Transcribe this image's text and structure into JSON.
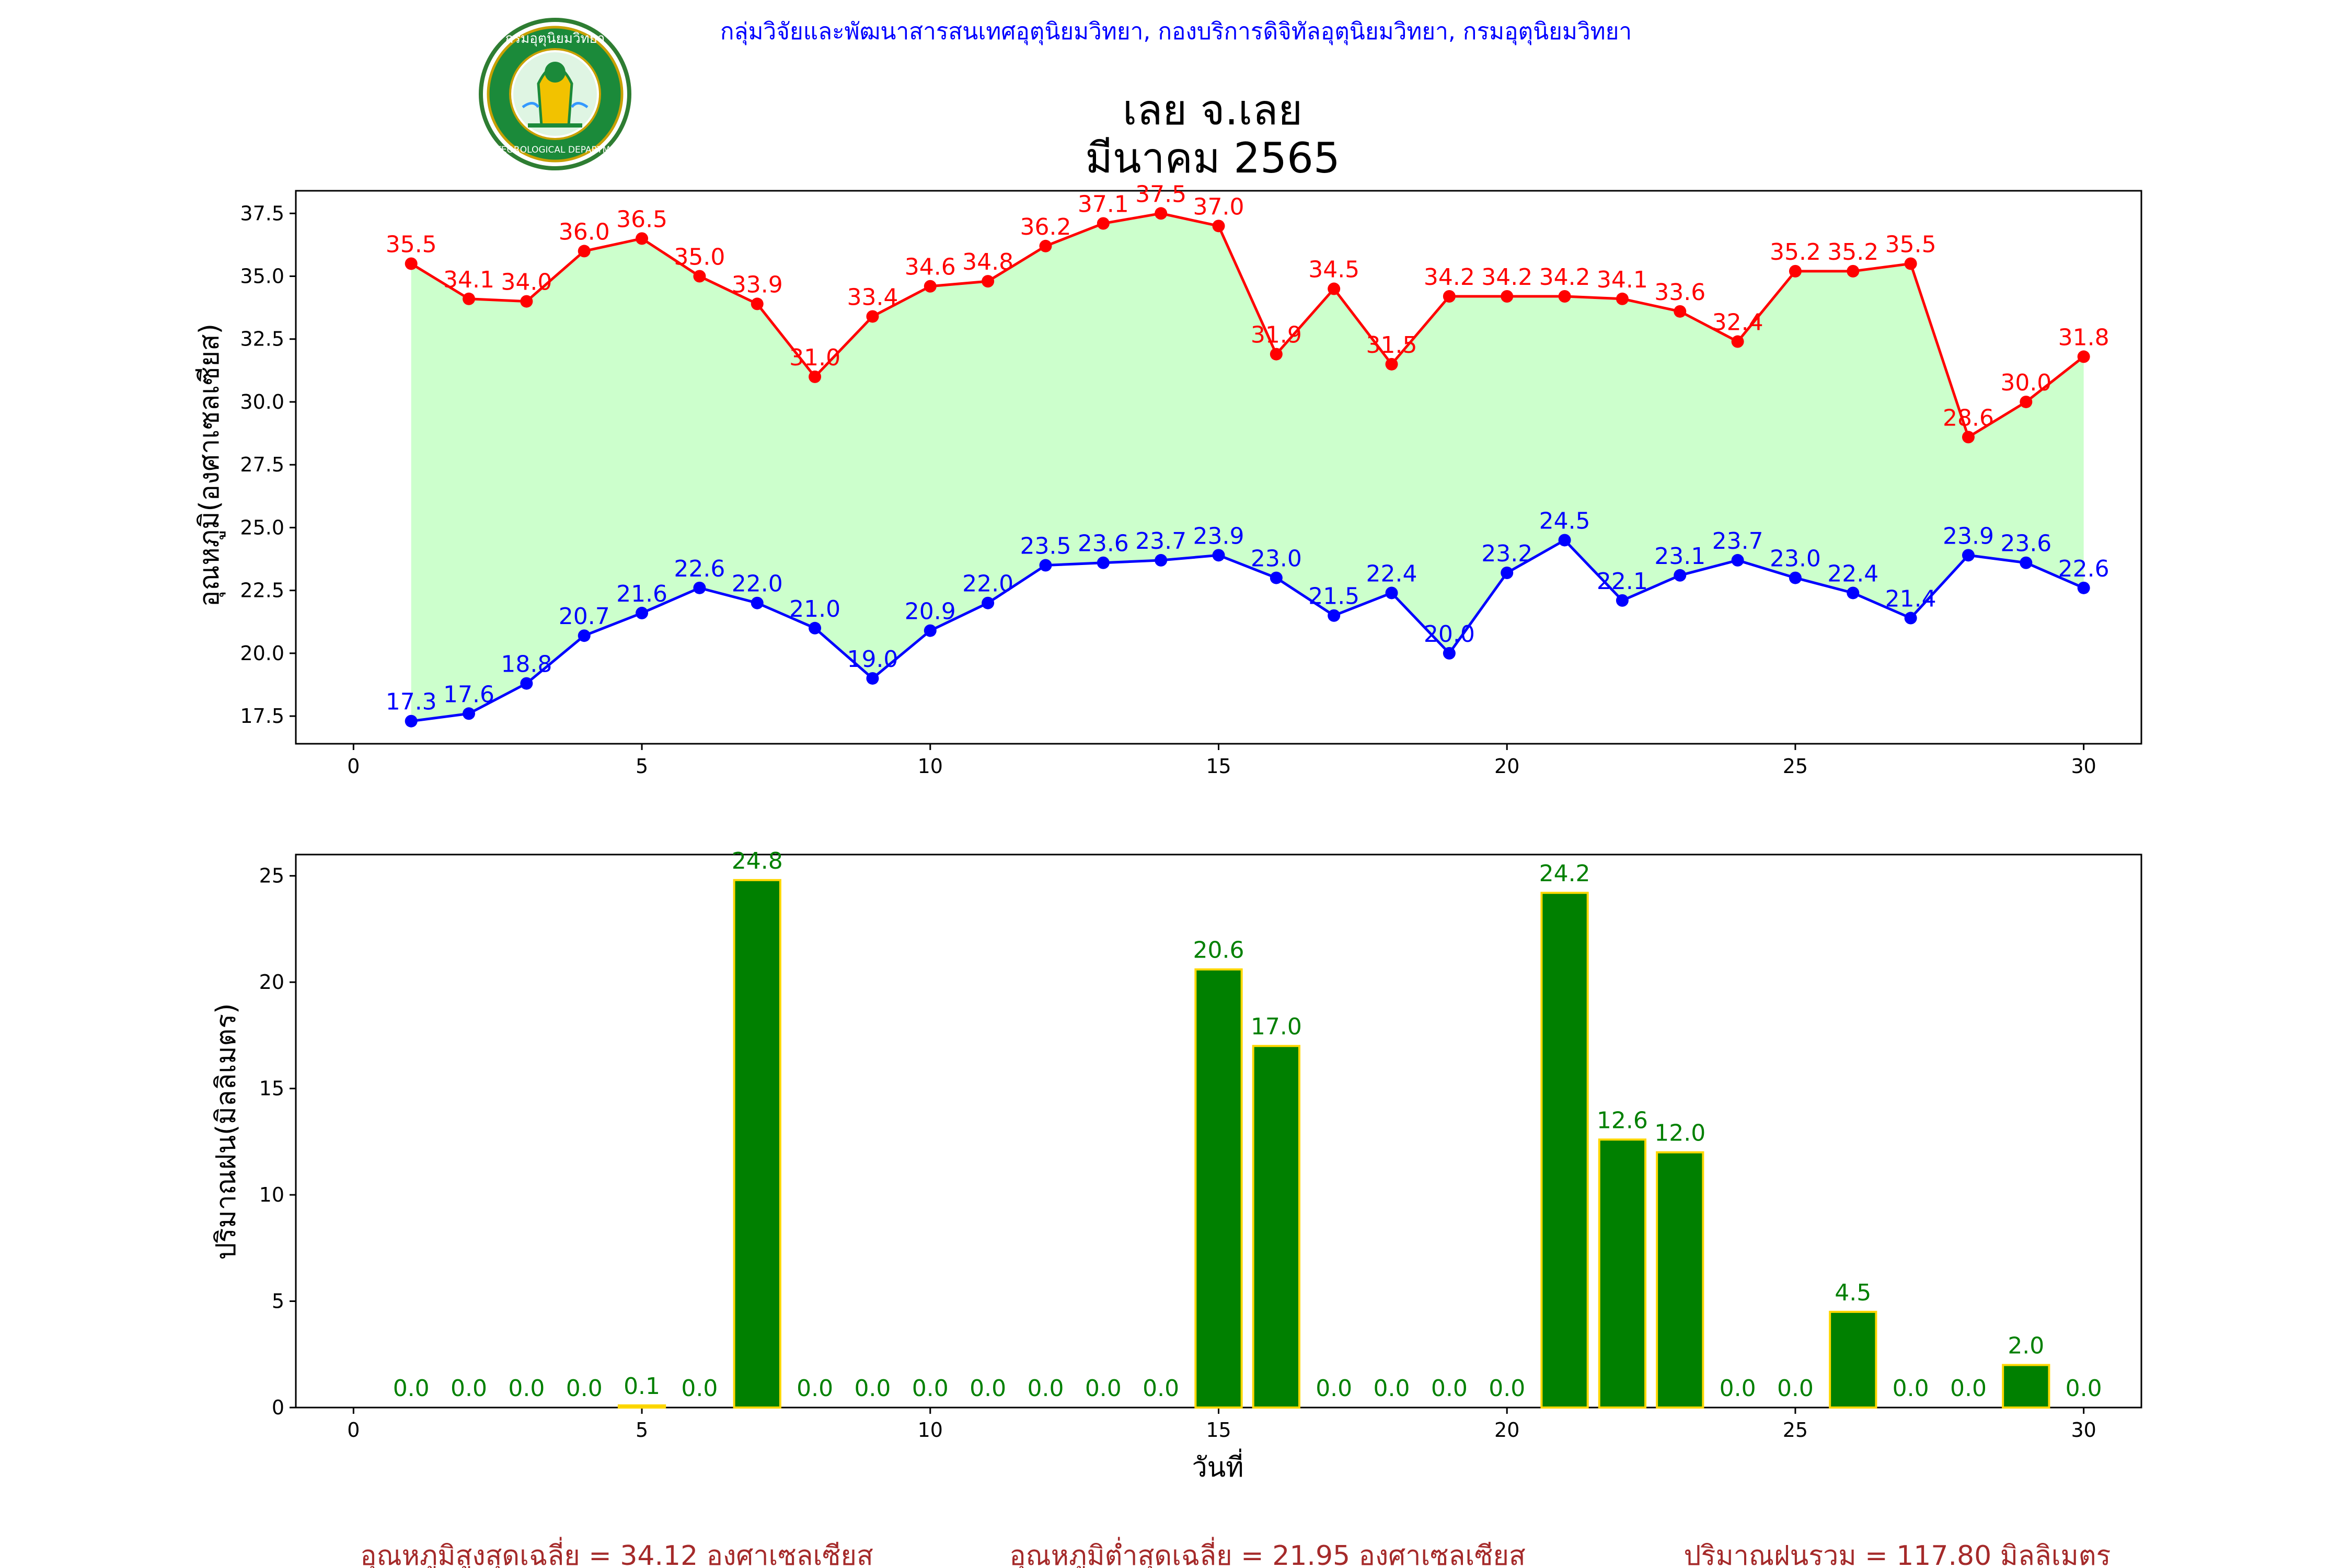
{
  "header": {
    "org_line": "กลุ่มวิจัยและพัฒนาสารสนเทศอุตุนิยมวิทยา, กองบริการดิจิทัลอุตุนิยมวิทยา, กรมอุตุนิยมวิทยา",
    "title_line1": "เลย จ.เลย",
    "title_line2": "มีนาคม 2565",
    "logo_top_text": "กรมอุตุนิยมวิทยา",
    "logo_bottom_text": "METEOROLOGICAL DEPARTMENT"
  },
  "colors": {
    "max_line": "#ff0000",
    "min_line": "#0000ff",
    "fill": "#ccffcc",
    "rain_bar": "#008000",
    "rain_edge": "#ffd700",
    "rain_label": "#008000",
    "header_text": "#0000ff",
    "footer_text": "#a52a2a"
  },
  "chart_data": [
    {
      "type": "line",
      "ylabel": "อุณหภูมิ(องศาเซลเซียส)",
      "xlim": [
        -1,
        31
      ],
      "ylim": [
        16.4,
        38.4
      ],
      "xticks": [
        0,
        5,
        10,
        15,
        20,
        25,
        30
      ],
      "yticks": [
        17.5,
        20.0,
        22.5,
        25.0,
        27.5,
        30.0,
        32.5,
        35.0,
        37.5
      ],
      "x": [
        1,
        2,
        3,
        4,
        5,
        6,
        7,
        8,
        9,
        10,
        11,
        12,
        13,
        14,
        15,
        16,
        17,
        18,
        19,
        20,
        21,
        22,
        23,
        24,
        25,
        26,
        27,
        28,
        29,
        30
      ],
      "series": [
        {
          "key": "max",
          "values": [
            35.5,
            34.1,
            34.0,
            36.0,
            36.5,
            35.0,
            33.9,
            31.0,
            33.4,
            34.6,
            34.8,
            36.2,
            37.1,
            37.5,
            37.0,
            31.9,
            34.5,
            31.5,
            34.2,
            34.2,
            34.2,
            34.1,
            33.6,
            32.4,
            35.2,
            35.2,
            35.5,
            28.6,
            30.0,
            31.8
          ]
        },
        {
          "key": "min",
          "values": [
            17.3,
            17.6,
            18.8,
            20.7,
            21.6,
            22.6,
            22.0,
            21.0,
            19.0,
            20.9,
            22.0,
            23.5,
            23.6,
            23.7,
            23.9,
            23.0,
            21.5,
            22.4,
            20.0,
            23.2,
            24.5,
            22.1,
            23.1,
            23.7,
            23.0,
            22.4,
            21.4,
            23.9,
            23.6,
            22.6
          ]
        }
      ]
    },
    {
      "type": "bar",
      "ylabel": "ปริมาณฝน(มิลลิเมตร)",
      "xlabel": "วันที่",
      "xlim": [
        -1,
        31
      ],
      "ylim": [
        0,
        26
      ],
      "xticks": [
        0,
        5,
        10,
        15,
        20,
        25,
        30
      ],
      "yticks": [
        0,
        5,
        10,
        15,
        20,
        25
      ],
      "x": [
        1,
        2,
        3,
        4,
        5,
        6,
        7,
        8,
        9,
        10,
        11,
        12,
        13,
        14,
        15,
        16,
        17,
        18,
        19,
        20,
        21,
        22,
        23,
        24,
        25,
        26,
        27,
        28,
        29,
        30
      ],
      "values": [
        0.0,
        0.0,
        0.0,
        0.0,
        0.1,
        0.0,
        24.8,
        0.0,
        0.0,
        0.0,
        0.0,
        0.0,
        0.0,
        0.0,
        20.6,
        17.0,
        0.0,
        0.0,
        0.0,
        0.0,
        24.2,
        12.6,
        12.0,
        0.0,
        0.0,
        4.5,
        0.0,
        0.0,
        2.0,
        0.0
      ]
    }
  ],
  "footer": {
    "avg_max": "อุณหภูมิสูงสุดเฉลี่ย = 34.12 องศาเซลเซียส",
    "avg_min": "อุณหภูมิต่ำสุดเฉลี่ย = 21.95 องศาเซลเซียส",
    "total_rain": "ปริมาณฝนรวม = 117.80 มิลลิเมตร"
  }
}
